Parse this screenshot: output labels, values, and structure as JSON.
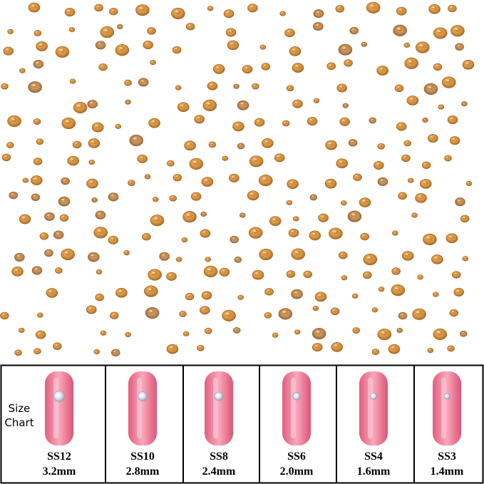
{
  "size_chart": {
    "title_lines": [
      "Size",
      "Chart"
    ],
    "sizes": [
      {
        "name": "SS12",
        "mm": "3.2mm"
      },
      {
        "name": "SS10",
        "mm": "2.8mm"
      },
      {
        "name": "SS8",
        "mm": "2.4mm"
      },
      {
        "name": "SS6",
        "mm": "2.0mm"
      },
      {
        "name": "SS4",
        "mm": "1.6mm"
      },
      {
        "name": "SS3",
        "mm": "1.4mm"
      }
    ]
  }
}
